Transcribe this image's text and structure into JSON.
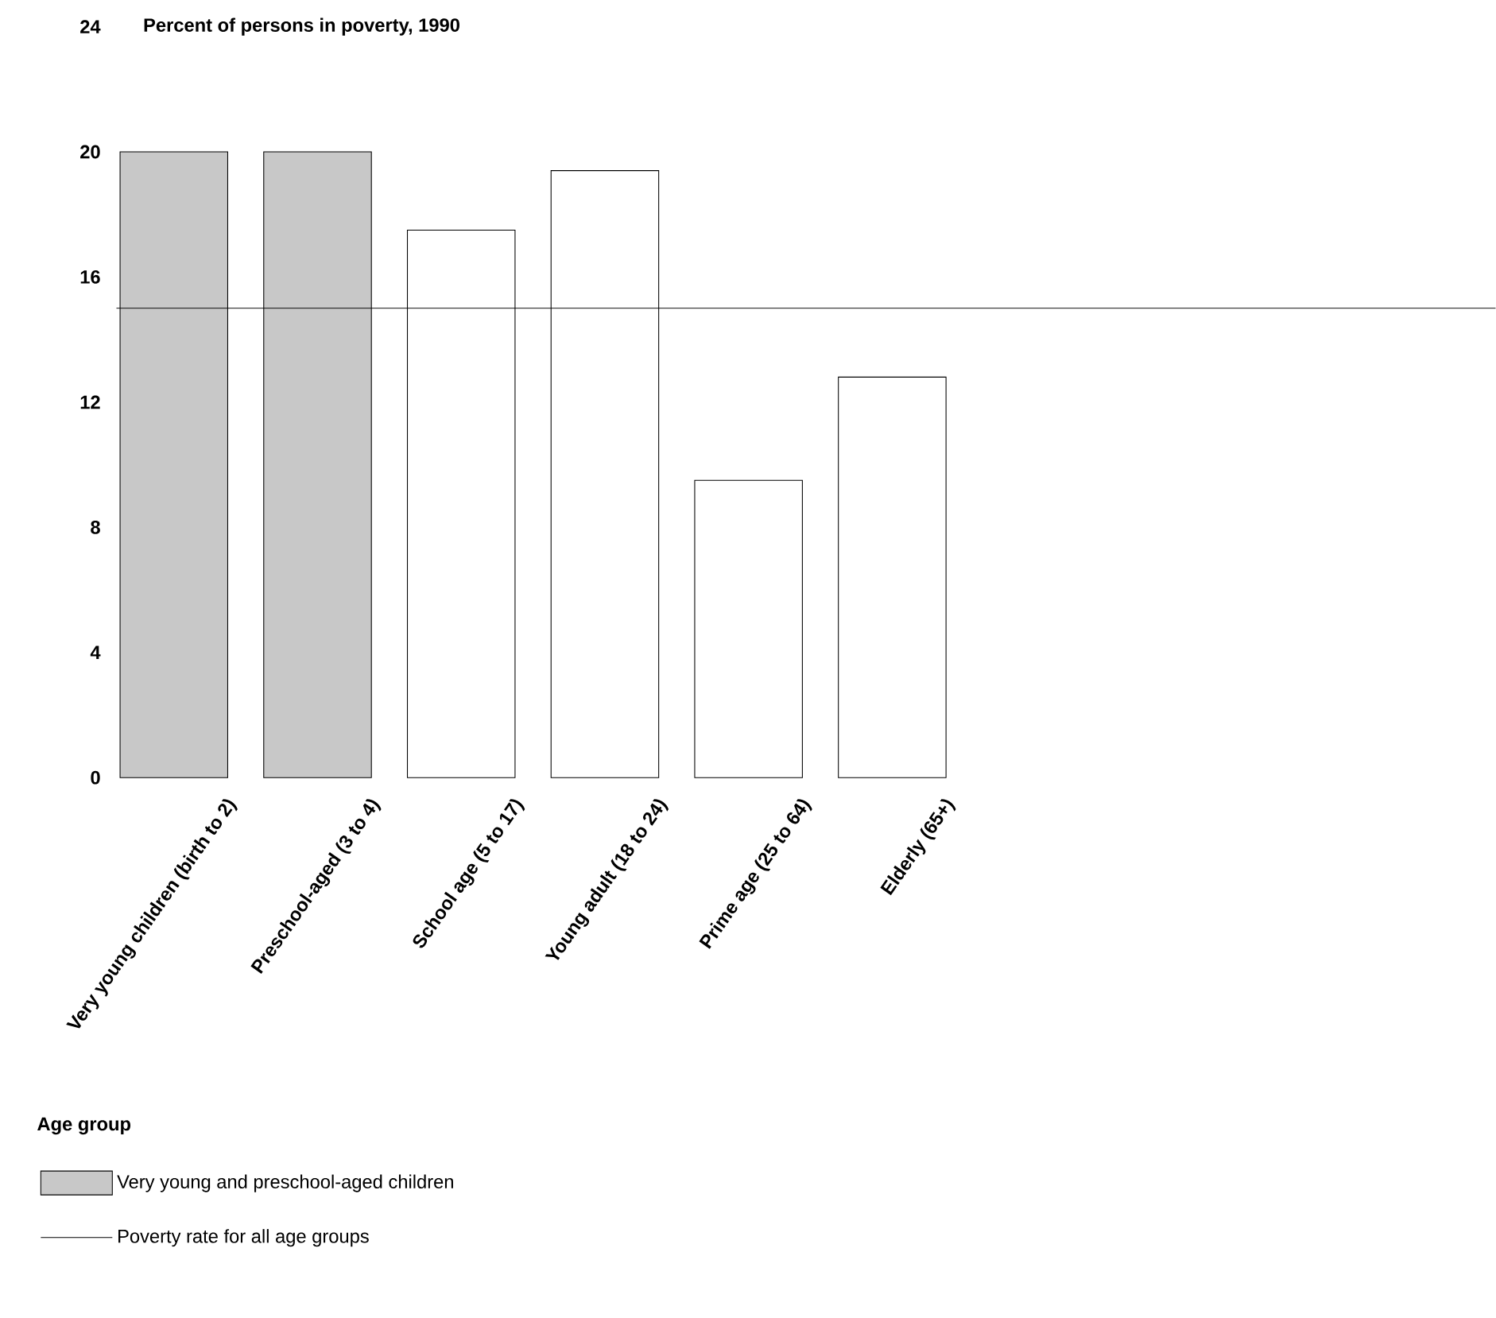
{
  "chart_data": {
    "type": "bar",
    "title": "Percent of persons in poverty, 1990",
    "xlabel": "Age group",
    "categories": [
      "Very young children (birth to 2)",
      "Preschool-aged (3 to 4)",
      "School age (5 to 17)",
      "Young adult (18 to 24)",
      "Prime age (25 to 64)",
      "Elderly (65+)"
    ],
    "series": [
      {
        "name": "Very young and preschool-aged children",
        "color": "#c8c8c8",
        "values": [
          20.0,
          20.0,
          null,
          null,
          null,
          null
        ]
      },
      {
        "color": "#ffffff",
        "values": [
          null,
          null,
          17.5,
          19.4,
          9.5,
          12.8
        ]
      }
    ],
    "ylim": [
      0,
      24
    ],
    "yticks": [
      0,
      4,
      8,
      12,
      16,
      20,
      24
    ],
    "ref_lines": [
      {
        "axis": "y",
        "value": 15.0,
        "label": "Poverty rate for all age groups",
        "color": "#000000"
      }
    ],
    "grid": false,
    "legend": "bottom left"
  }
}
